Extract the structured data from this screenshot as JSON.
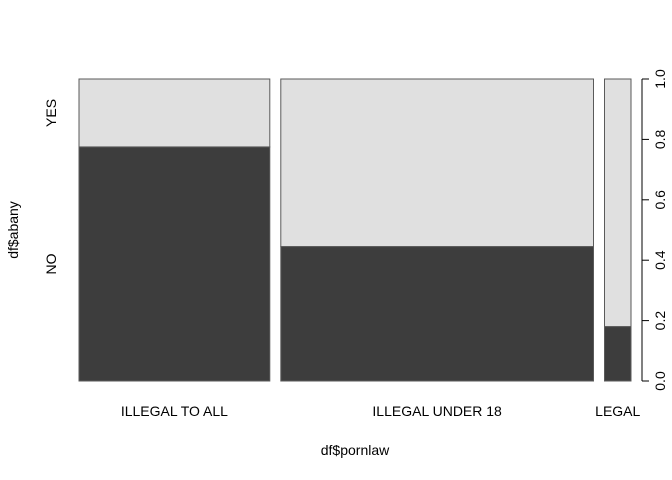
{
  "chart_data": {
    "type": "mosaic",
    "xlabel": "df$pornlaw",
    "ylabel": "df$abany",
    "categories": [
      "ILLEGAL TO ALL",
      "ILLEGAL UNDER 18",
      "LEGAL"
    ],
    "column_widths": [
      0.36,
      0.59,
      0.05
    ],
    "y_levels": [
      "NO",
      "YES"
    ],
    "series": [
      {
        "name": "NO",
        "values": [
          0.775,
          0.445,
          0.18
        ]
      },
      {
        "name": "YES",
        "values": [
          0.225,
          0.555,
          0.82
        ]
      }
    ],
    "ylim": [
      0,
      1
    ],
    "yticks": [
      "0.0",
      "0.2",
      "0.4",
      "0.6",
      "0.8",
      "1.0"
    ],
    "grid": false,
    "legend": "none",
    "colors": {
      "NO": "#3d3d3d",
      "YES": "#e0e0e0",
      "border": "#5a5a5a"
    }
  }
}
